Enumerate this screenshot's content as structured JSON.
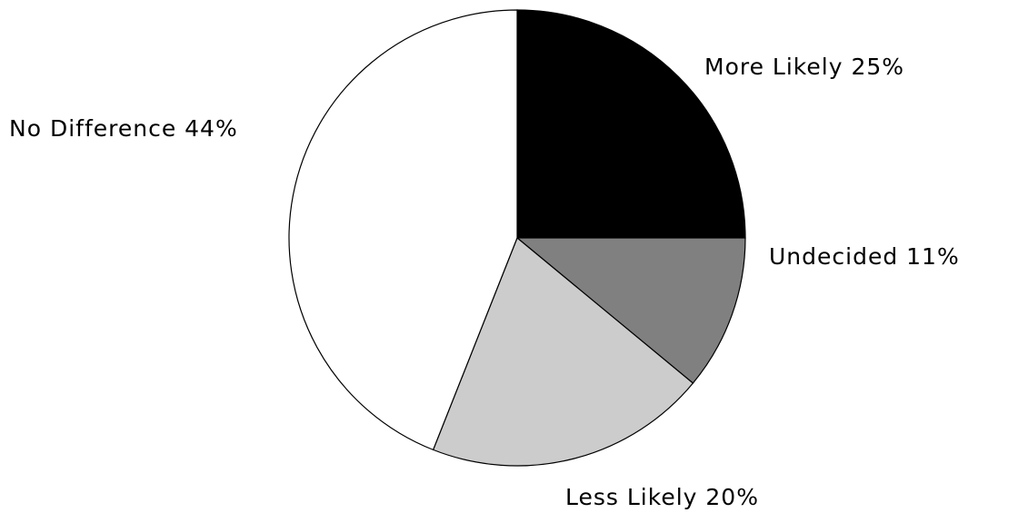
{
  "chart_data": {
    "type": "pie",
    "title": "",
    "start_angle_deg": 0,
    "direction": "clockwise",
    "slices": [
      {
        "label": "More Likely 25%",
        "value": 25,
        "color": "#000000"
      },
      {
        "label": "Undecided 11%",
        "value": 11,
        "color": "#808080"
      },
      {
        "label": "Less Likely 20%",
        "value": 20,
        "color": "#cccccc"
      },
      {
        "label": "No Difference 44%",
        "value": 44,
        "color": "#ffffff"
      }
    ]
  }
}
